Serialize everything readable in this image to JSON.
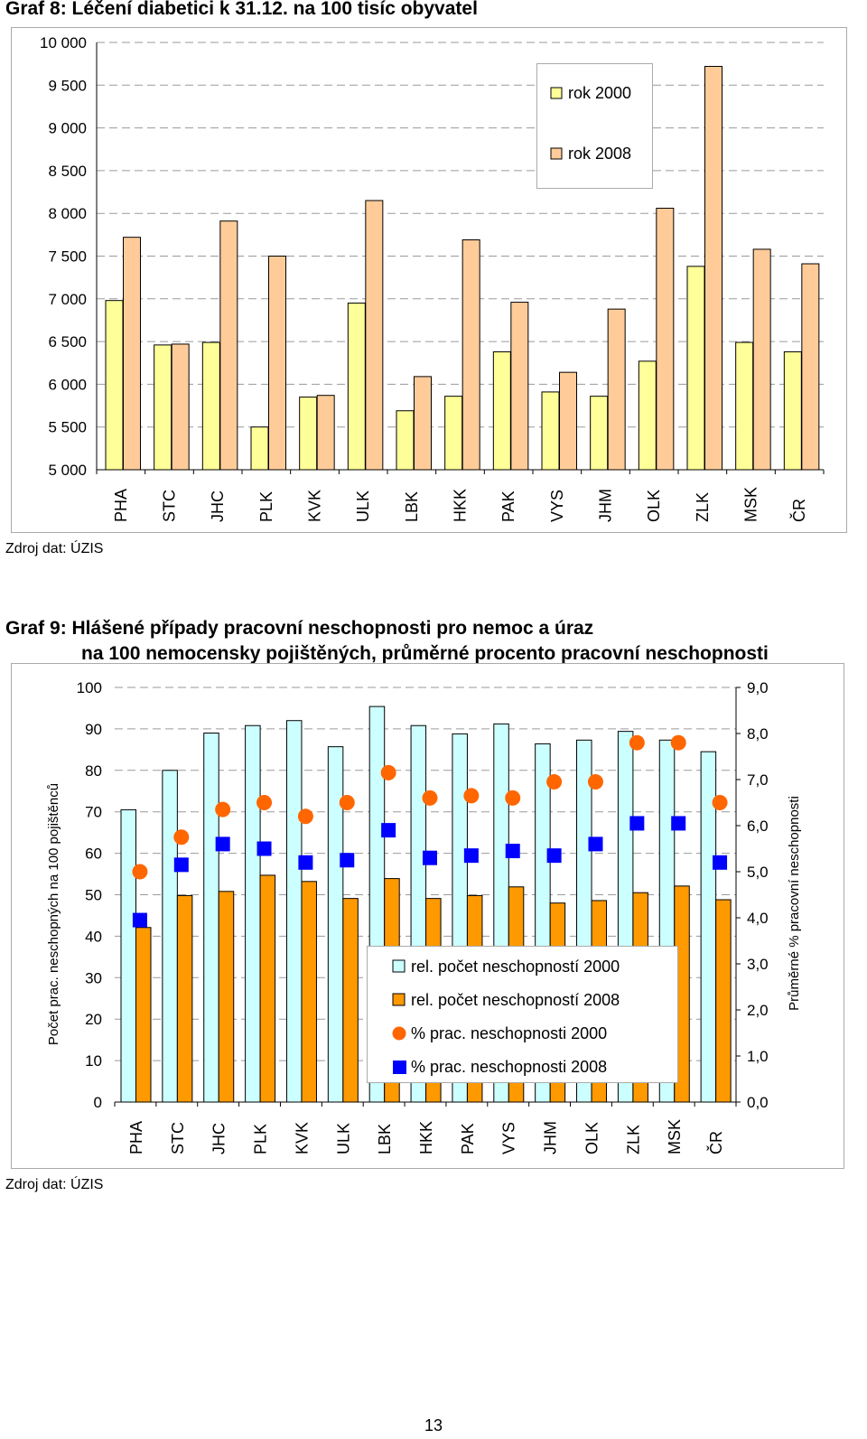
{
  "graph8": {
    "title": "Graf 8: Léčení diabetici k 31.12. na 100 tisíc obyvatel",
    "source": "Zdroj dat: ÚZIS",
    "chart_data": {
      "type": "bar",
      "categories": [
        "PHA",
        "STC",
        "JHC",
        "PLK",
        "KVK",
        "ULK",
        "LBK",
        "HKK",
        "PAK",
        "VYS",
        "JHM",
        "OLK",
        "ZLK",
        "MSK",
        "ČR"
      ],
      "ylim": [
        5000,
        10000
      ],
      "yticks": [
        5000,
        5500,
        6000,
        6500,
        7000,
        7500,
        8000,
        8500,
        9000,
        9500,
        10000
      ],
      "ytick_labels": [
        "5 000",
        "5 500",
        "6 000",
        "6 500",
        "7 000",
        "7 500",
        "8 000",
        "8 500",
        "9 000",
        "9 500",
        "10 000"
      ],
      "series": [
        {
          "name": "rok 2000",
          "color": "#ffff99",
          "values": [
            6980,
            6460,
            6490,
            5500,
            5850,
            6950,
            5690,
            5860,
            6380,
            5910,
            5860,
            6270,
            7380,
            6490,
            6380
          ]
        },
        {
          "name": "rok 2008",
          "color": "#ffcc99",
          "values": [
            7720,
            6470,
            7910,
            7500,
            5870,
            8150,
            6090,
            7690,
            6960,
            6140,
            6880,
            8060,
            9720,
            7580,
            7410
          ]
        }
      ],
      "legend_position": "top-right"
    }
  },
  "graph9": {
    "title_line1": "Graf 9:  Hlášené případy pracovní neschopnosti pro nemoc a úraz",
    "title_line2": "na 100 nemocensky pojištěných, průměrné procento pracovní neschopnosti",
    "source": "Zdroj dat: ÚZIS",
    "chart_data": {
      "type": "bar",
      "categories": [
        "PHA",
        "STC",
        "JHC",
        "PLK",
        "KVK",
        "ULK",
        "LBK",
        "HKK",
        "PAK",
        "VYS",
        "JHM",
        "OLK",
        "ZLK",
        "MSK",
        "ČR"
      ],
      "ylabel": "Počet prac. neschopných na 100 pojištěnců",
      "y2label": "Průměrné % pracovní neschopnosti",
      "ylim": [
        0,
        100
      ],
      "y2lim": [
        0,
        9
      ],
      "yticks": [
        0,
        10,
        20,
        30,
        40,
        50,
        60,
        70,
        80,
        90,
        100
      ],
      "ytick_labels": [
        "0",
        "10",
        "20",
        "30",
        "40",
        "50",
        "60",
        "70",
        "80",
        "90",
        "100"
      ],
      "y2ticks": [
        0,
        1,
        2,
        3,
        4,
        5,
        6,
        7,
        8,
        9
      ],
      "y2tick_labels": [
        "0,0",
        "1,0",
        "2,0",
        "3,0",
        "4,0",
        "5,0",
        "6,0",
        "7,0",
        "8,0",
        "9,0"
      ],
      "series": [
        {
          "name": "rel. počet neschopností 2000",
          "kind": "bar",
          "axis": "left",
          "color": "#ccffff",
          "values": [
            70.5,
            80,
            89,
            90.8,
            92,
            85.7,
            95.4,
            90.8,
            88.8,
            91.2,
            86.4,
            87.3,
            89.4,
            87.3,
            84.5
          ]
        },
        {
          "name": "rel. počet neschopností 2008",
          "kind": "bar",
          "axis": "left",
          "color": "#ff9900",
          "values": [
            42.1,
            49.8,
            50.8,
            54.7,
            53.2,
            49.1,
            53.9,
            49.1,
            49.8,
            51.9,
            48,
            48.6,
            50.5,
            52.1,
            48.8
          ]
        },
        {
          "name": "% prac. neschopnosti 2000",
          "kind": "marker",
          "marker": "circle",
          "axis": "right",
          "color": "#ff6600",
          "values": [
            5.0,
            5.75,
            6.35,
            6.5,
            6.2,
            6.5,
            7.15,
            6.6,
            6.65,
            6.6,
            6.95,
            6.95,
            7.8,
            7.8,
            6.5
          ]
        },
        {
          "name": "% prac. neschopnosti 2008",
          "kind": "marker",
          "marker": "square",
          "axis": "right",
          "color": "#0000ff",
          "values": [
            3.95,
            5.15,
            5.6,
            5.5,
            5.2,
            5.25,
            5.9,
            5.3,
            5.35,
            5.45,
            5.35,
            5.6,
            6.05,
            6.05,
            5.2
          ]
        }
      ],
      "legend_position": "bottom-right"
    }
  },
  "page_number": "13"
}
